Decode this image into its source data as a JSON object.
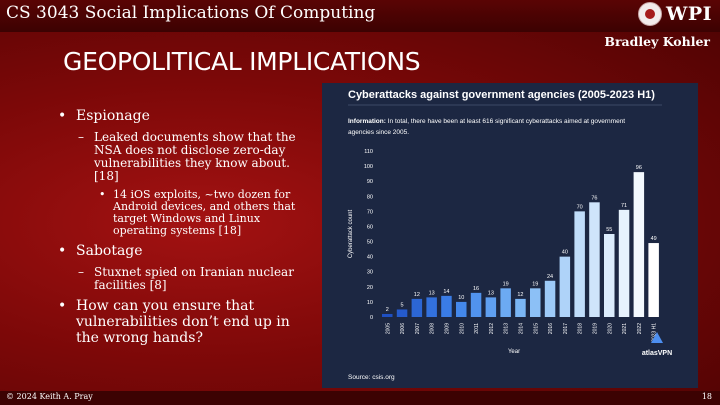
{
  "header": {
    "course_title": "CS 3043 Social Implications Of Computing",
    "logo_text": "WPI"
  },
  "author": "Bradley Kohler",
  "title": "GEOPOLITICAL IMPLICATIONS",
  "bullets": {
    "espionage": "Espionage",
    "espionage_sub": "Leaked documents show that the NSA does not disclose zero-day vulnerabilities they know about. [18]",
    "espionage_subsub": "14 iOS exploits, ~two dozen for Android devices, and others that target Windows and Linux operating systems [18]",
    "sabotage": "Sabotage",
    "sabotage_sub": "Stuxnet spied on Iranian nuclear facilities [8]",
    "question": "How can you ensure that vulnerabilities don’t end up in the wrong hands?"
  },
  "footer": {
    "copyright": "© 2024 Keith A. Pray",
    "page_number": "18"
  },
  "chart_data": {
    "type": "bar",
    "title": "Cyberattacks against government agencies (2005-2023 H1)",
    "info_label": "Information:",
    "info_text": "In total, there have been at least 616 significant cyberattacks aimed at government agencies since 2005.",
    "categories": [
      "2005",
      "2006",
      "2007",
      "2008",
      "2009",
      "2010",
      "2011",
      "2012",
      "2013",
      "2014",
      "2015",
      "2016",
      "2017",
      "2018",
      "2019",
      "2020",
      "2021",
      "2022",
      "2023 H1"
    ],
    "values": [
      2,
      5,
      12,
      13,
      14,
      10,
      16,
      13,
      19,
      12,
      19,
      24,
      40,
      70,
      76,
      55,
      71,
      96,
      49
    ],
    "value_labels": [
      "2",
      "5",
      "12",
      "13",
      "14",
      "10",
      "16",
      "13",
      "19",
      "12",
      "19",
      "24",
      "40",
      "70",
      "76",
      "55",
      "71",
      "96",
      "49"
    ],
    "xlabel": "Year",
    "ylabel": "Cyberattack count",
    "ylim": [
      0,
      110
    ],
    "yticks": [
      "0",
      "10",
      "20",
      "30",
      "40",
      "50",
      "60",
      "70",
      "80",
      "90",
      "100",
      "110"
    ],
    "source": "Source: csis.org",
    "brand": "atlasVPN",
    "colors": {
      "panel_bg": "#1c2742",
      "gradient": [
        "#1e4fc2",
        "#3d82ea",
        "#7ab6f5",
        "#c9e2fb",
        "#ffffff"
      ],
      "text": "#ffffff"
    }
  }
}
